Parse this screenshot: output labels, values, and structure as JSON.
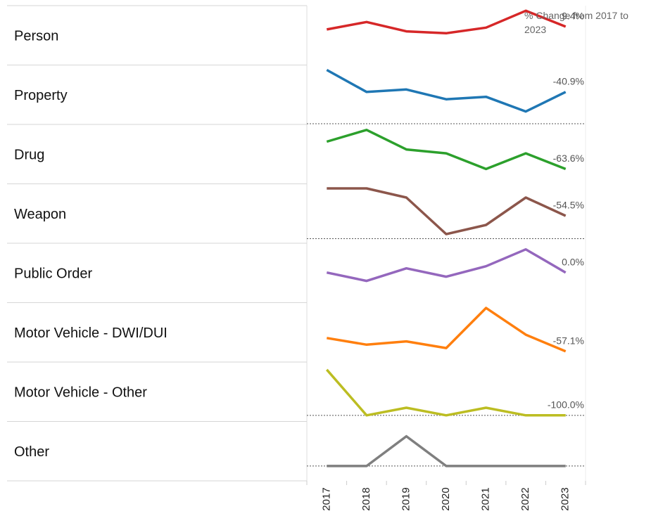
{
  "chart_data": {
    "type": "line",
    "header": "% Change from 2017 to 2023",
    "categories": [
      "2017",
      "2018",
      "2019",
      "2020",
      "2021",
      "2022",
      "2023"
    ],
    "series": [
      {
        "name": "Person",
        "color": "#d62728",
        "values": [
          32,
          40,
          30,
          28,
          34,
          52,
          35
        ],
        "ylim": [
          -6,
          57.5
        ],
        "zero_line": false,
        "change": 9.4,
        "change_label": "9.4%"
      },
      {
        "name": "Property",
        "color": "#1f77b4",
        "values": [
          22,
          13,
          14,
          10,
          11,
          5,
          13
        ],
        "ylim": [
          -0.3,
          24
        ],
        "zero_line": true,
        "change": -40.9,
        "change_label": "-40.9%"
      },
      {
        "name": "Drug",
        "color": "#2ca02c",
        "values": [
          11,
          14,
          9,
          8,
          4,
          8,
          4
        ],
        "ylim": [
          0.2,
          15.4
        ],
        "zero_line": false,
        "change": -63.6,
        "change_label": "-63.6%"
      },
      {
        "name": "Weapon",
        "color": "#8c564b",
        "values": [
          11,
          11,
          9,
          1,
          3,
          9,
          5
        ],
        "ylim": [
          -1,
          12
        ],
        "zero_line": true,
        "change": -54.5,
        "change_label": "-54.5%"
      },
      {
        "name": "Public Order",
        "color": "#9467bd",
        "values": [
          10,
          6,
          12,
          8,
          13,
          21,
          10
        ],
        "ylim": [
          -4.3,
          23.9
        ],
        "zero_line": false,
        "change": 0.0,
        "change_label": "0.0%"
      },
      {
        "name": "Motor Vehicle - DWI/DUI",
        "color": "#ff7f0e",
        "values": [
          7,
          5,
          6,
          4,
          16,
          8,
          3
        ],
        "ylim": [
          -0.2,
          17.6
        ],
        "zero_line": false,
        "change": -57.1,
        "change_label": "-57.1%"
      },
      {
        "name": "Motor Vehicle - Other",
        "color": "#bcbd22",
        "values": [
          6,
          0,
          1,
          0,
          1,
          0,
          0
        ],
        "ylim": [
          -0.8,
          7
        ],
        "zero_line": true,
        "change": -100.0,
        "change_label": "-100.0%"
      },
      {
        "name": "Other",
        "color": "#7f7f7f",
        "values": [
          0,
          0,
          1,
          0,
          0,
          0,
          0
        ],
        "ylim": [
          -0.5,
          1.5
        ],
        "zero_line": true
      }
    ]
  }
}
